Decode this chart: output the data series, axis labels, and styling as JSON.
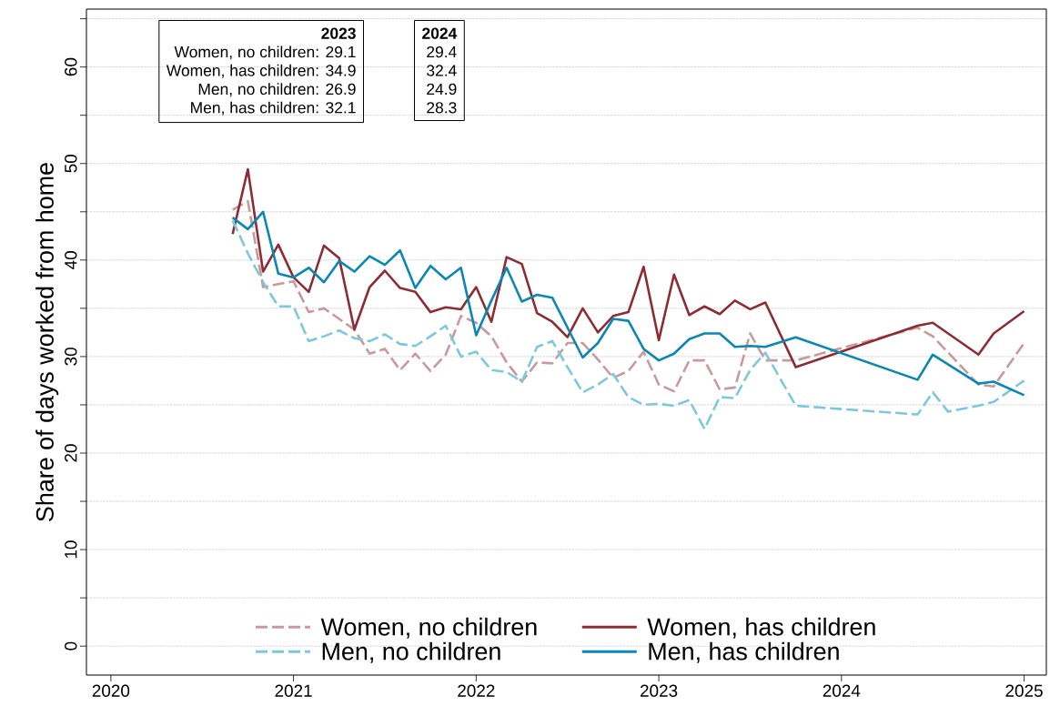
{
  "chart_data": {
    "type": "line",
    "ylabel": "Share of days worked from home",
    "xlim": [
      "2019-11-13",
      "2025-02-15"
    ],
    "xticks": [
      "2020",
      "2021",
      "2022",
      "2023",
      "2024",
      "2025"
    ],
    "ylim": [
      -3,
      66
    ],
    "yticks": [
      0,
      {
        "value": 5,
        "label": null
      },
      10,
      {
        "value": 15,
        "label": null
      },
      20,
      {
        "value": 25,
        "label": null
      },
      30,
      {
        "value": 35,
        "label": null
      },
      40,
      {
        "value": 45,
        "label": null
      },
      50,
      {
        "value": 55,
        "label": null
      },
      60,
      {
        "value": 65,
        "label": null
      }
    ],
    "grid": "y",
    "legend": "bottom",
    "annotations": [
      "2023",
      "Women, no children: 29.1",
      "Women, has children: 34.9",
      "Men, no children: 26.9",
      "Men, has children: 32.1",
      "2024",
      "29.4",
      "32.4",
      "24.9",
      "28.3"
    ],
    "series": [
      {
        "name": "Women, no children",
        "color": "#c9999b",
        "line_style": "dashed",
        "x": [
          "2020-09",
          "2020-10",
          "2020-11",
          "2020-12",
          "2021-01",
          "2021-02",
          "2021-03",
          "2021-04",
          "2021-05",
          "2021-06",
          "2021-07",
          "2021-08",
          "2021-09",
          "2021-10",
          "2021-11",
          "2021-12",
          "2022-01",
          "2022-02",
          "2022-03",
          "2022-04",
          "2022-05",
          "2022-06",
          "2022-07",
          "2022-08",
          "2022-09",
          "2022-10",
          "2022-11",
          "2022-12",
          "2023-01",
          "2023-02",
          "2023-03",
          "2023-04",
          "2023-05",
          "2023-06",
          "2023-07",
          "2023-08",
          "2023-10",
          "2024-06",
          "2024-07",
          "2024-10",
          "2024-11",
          "2025-01"
        ],
        "values": [
          45.2,
          46.1,
          37.2,
          37.5,
          37.8,
          34.6,
          35.0,
          33.9,
          32.8,
          30.3,
          30.8,
          28.6,
          30.3,
          28.5,
          30.2,
          34.2,
          33.5,
          32.1,
          29.4,
          27.4,
          29.4,
          29.3,
          31.4,
          31.4,
          29.7,
          27.8,
          28.5,
          30.5,
          27.1,
          26.4,
          29.6,
          29.6,
          26.6,
          26.8,
          32.4,
          29.6,
          29.6,
          33.0,
          32.1,
          27.1,
          26.9,
          31.4
        ]
      },
      {
        "name": "Women, has children",
        "color": "#8e2c34",
        "line_style": "solid",
        "x": [
          "2020-09",
          "2020-10",
          "2020-11",
          "2020-12",
          "2021-01",
          "2021-02",
          "2021-03",
          "2021-04",
          "2021-05",
          "2021-06",
          "2021-07",
          "2021-08",
          "2021-09",
          "2021-10",
          "2021-11",
          "2021-12",
          "2022-01",
          "2022-02",
          "2022-03",
          "2022-04",
          "2022-05",
          "2022-06",
          "2022-07",
          "2022-08",
          "2022-09",
          "2022-10",
          "2022-11",
          "2022-12",
          "2023-01",
          "2023-02",
          "2023-03",
          "2023-04",
          "2023-05",
          "2023-06",
          "2023-07",
          "2023-08",
          "2023-10",
          "2024-06",
          "2024-07",
          "2024-10",
          "2024-11",
          "2025-01"
        ],
        "values": [
          42.7,
          49.4,
          38.8,
          41.6,
          38.2,
          36.7,
          41.5,
          40.2,
          32.8,
          37.2,
          38.9,
          37.1,
          36.7,
          34.6,
          35.1,
          34.9,
          37.2,
          33.6,
          40.3,
          39.6,
          34.5,
          33.6,
          32.0,
          35.0,
          32.5,
          34.2,
          34.6,
          39.3,
          31.7,
          38.5,
          34.3,
          35.2,
          34.4,
          35.8,
          34.9,
          35.6,
          28.9,
          33.2,
          33.5,
          30.2,
          32.4,
          34.7
        ]
      },
      {
        "name": "Men, no children",
        "color": "#7ec8de",
        "line_style": "dashed",
        "x": [
          "2020-09",
          "2020-10",
          "2020-11",
          "2020-12",
          "2021-01",
          "2021-02",
          "2021-03",
          "2021-04",
          "2021-05",
          "2021-06",
          "2021-07",
          "2021-08",
          "2021-09",
          "2021-10",
          "2021-11",
          "2021-12",
          "2022-01",
          "2022-02",
          "2022-03",
          "2022-04",
          "2022-05",
          "2022-06",
          "2022-07",
          "2022-08",
          "2022-09",
          "2022-10",
          "2022-11",
          "2022-12",
          "2023-01",
          "2023-02",
          "2023-03",
          "2023-04",
          "2023-05",
          "2023-06",
          "2023-07",
          "2023-08",
          "2023-10",
          "2024-06",
          "2024-07",
          "2024-08",
          "2024-10",
          "2024-11",
          "2025-01"
        ],
        "values": [
          44.1,
          40.7,
          37.7,
          35.2,
          35.2,
          31.6,
          32.1,
          32.7,
          31.9,
          31.6,
          32.3,
          31.3,
          31.1,
          32.1,
          33.2,
          30.0,
          30.5,
          28.6,
          28.4,
          27.4,
          31.0,
          31.6,
          28.9,
          26.3,
          27.1,
          28.2,
          25.8,
          25.0,
          25.1,
          24.9,
          25.5,
          22.5,
          25.8,
          25.7,
          28.6,
          30.4,
          24.9,
          24.0,
          26.3,
          24.3,
          24.9,
          25.3,
          27.5
        ]
      },
      {
        "name": "Men, has children",
        "color": "#0b87b4",
        "line_style": "solid",
        "x": [
          "2020-09",
          "2020-10",
          "2020-11",
          "2020-12",
          "2021-01",
          "2021-02",
          "2021-03",
          "2021-04",
          "2021-05",
          "2021-06",
          "2021-07",
          "2021-08",
          "2021-09",
          "2021-10",
          "2021-11",
          "2021-12",
          "2022-01",
          "2022-02",
          "2022-03",
          "2022-04",
          "2022-05",
          "2022-06",
          "2022-07",
          "2022-08",
          "2022-09",
          "2022-10",
          "2022-11",
          "2022-12",
          "2023-01",
          "2023-02",
          "2023-03",
          "2023-04",
          "2023-05",
          "2023-06",
          "2023-07",
          "2023-08",
          "2023-10",
          "2024-06",
          "2024-07",
          "2024-10",
          "2024-11",
          "2025-01"
        ],
        "values": [
          44.4,
          43.2,
          45.0,
          38.6,
          38.2,
          39.2,
          37.7,
          39.9,
          38.8,
          40.4,
          39.5,
          41.0,
          37.1,
          39.4,
          38.0,
          39.2,
          32.2,
          35.8,
          39.2,
          35.7,
          36.4,
          36.1,
          33.0,
          29.9,
          31.4,
          33.9,
          33.7,
          30.8,
          29.6,
          30.3,
          31.8,
          32.4,
          32.4,
          31.0,
          31.1,
          31.0,
          32.0,
          27.6,
          30.2,
          27.2,
          27.4,
          26.0
        ]
      }
    ]
  }
}
